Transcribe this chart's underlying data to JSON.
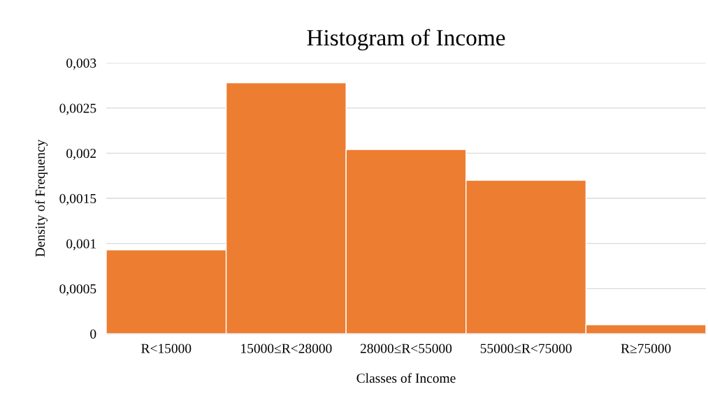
{
  "chart_data": {
    "type": "bar",
    "title": "Histogram of Income",
    "xlabel": "Classes of Income",
    "ylabel": "Density of Frequency",
    "categories": [
      "R<15000",
      "15000≤R<28000",
      "28000≤R<55000",
      "55000≤R<75000",
      "R≥75000"
    ],
    "values": [
      0.00093,
      0.00278,
      0.00204,
      0.0017,
      0.0001
    ],
    "color": "#ed7d31",
    "ylim": [
      0,
      0.003
    ],
    "yticks": [
      0,
      {
        "value": 0.0005,
        "label": "0,0005"
      },
      {
        "value": 0.001,
        "label": "0,001"
      },
      {
        "value": 0.0015,
        "label": "0,0015"
      },
      {
        "value": 0.002,
        "label": "0,002"
      },
      {
        "value": 0.0025,
        "label": "0,0025"
      },
      {
        "value": 0.003,
        "label": "0,003"
      }
    ],
    "grid": "y"
  }
}
